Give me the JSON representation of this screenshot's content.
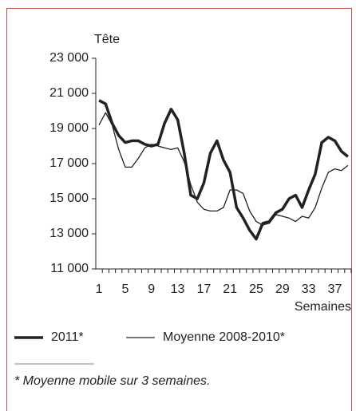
{
  "chart_data": {
    "type": "line",
    "ylabel": "Tête",
    "xlabel": "Semaines",
    "categories": [
      "1",
      null,
      null,
      null,
      "5",
      null,
      null,
      null,
      "9",
      null,
      null,
      null,
      "13",
      null,
      null,
      null,
      "17",
      null,
      null,
      null,
      "21",
      null,
      null,
      null,
      "25",
      null,
      null,
      null,
      "29",
      null,
      null,
      null,
      "33",
      null,
      null,
      null,
      "37",
      null,
      null
    ],
    "series": [
      {
        "name": "2011*",
        "color": "#222222",
        "width": 3.5,
        "values": [
          20600,
          20400,
          19300,
          18600,
          18200,
          18300,
          18300,
          18100,
          18000,
          18100,
          19300,
          20100,
          19500,
          17600,
          15200,
          15000,
          15900,
          17600,
          18300,
          17200,
          16500,
          14500,
          13900,
          13200,
          12700,
          13600,
          13700,
          14200,
          14400,
          15000,
          15200,
          14500,
          15500,
          16400,
          18200,
          18500,
          18300,
          17700,
          17400
        ]
      },
      {
        "name": "Moyenne 2008-2010*",
        "color": "#222222",
        "width": 1.3,
        "values": [
          19200,
          19900,
          19200,
          17800,
          16800,
          16800,
          17300,
          17900,
          18100,
          18000,
          17900,
          17800,
          17900,
          17100,
          15800,
          14800,
          14400,
          14300,
          14300,
          14500,
          15500,
          15500,
          15300,
          14300,
          13700,
          13500,
          13600,
          14100,
          14000,
          13900,
          13700,
          14000,
          13900,
          14500,
          15600,
          16500,
          16700,
          16600,
          16900
        ]
      }
    ],
    "ylim": [
      11000,
      23000
    ],
    "yticks": [
      {
        "value": 11000,
        "label": "11 000"
      },
      {
        "value": 13000,
        "label": "13 000"
      },
      {
        "value": 15000,
        "label": "15 000"
      },
      {
        "value": 17000,
        "label": "17 000"
      },
      {
        "value": 19000,
        "label": "19 000"
      },
      {
        "value": 21000,
        "label": "21 000"
      },
      {
        "value": 23000,
        "label": "23 000"
      }
    ],
    "note": "* Moyenne mobile sur 3 semaines."
  }
}
